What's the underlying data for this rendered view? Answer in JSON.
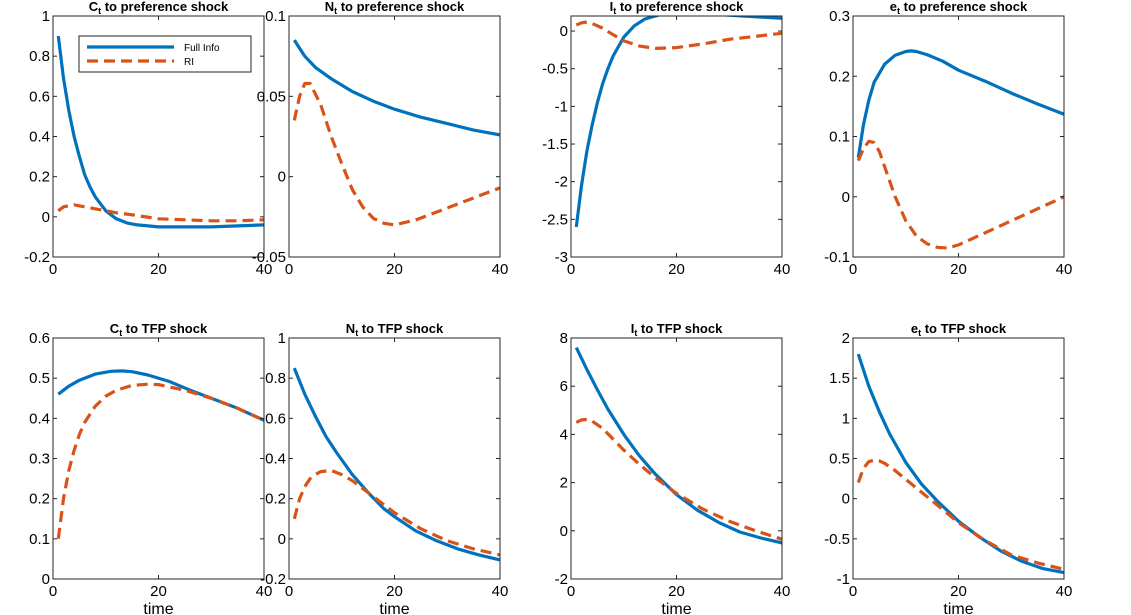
{
  "figure": {
    "legend": {
      "full_info": "Full Info",
      "ri": "RI"
    },
    "colors": {
      "full_info": "#0072BD",
      "ri": "#D95319"
    }
  },
  "chart_data": [
    {
      "type": "line",
      "var": "C",
      "sub": "t",
      "title_rest": " to preference shock",
      "xlabel": "",
      "xlim": [
        0,
        40
      ],
      "xticks": [
        "0",
        "20",
        "40"
      ],
      "ylim": [
        -0.2,
        1
      ],
      "yticks": [
        "-0.2",
        "0",
        "0.2",
        "0.4",
        "0.6",
        "0.8",
        "1"
      ],
      "legend": "top-left",
      "series": [
        {
          "name": "Full Info",
          "style": "solid",
          "x": [
            1,
            2,
            3,
            4,
            5,
            6,
            7,
            8,
            10,
            12,
            14,
            16,
            20,
            25,
            30,
            35,
            40
          ],
          "y": [
            0.9,
            0.69,
            0.53,
            0.4,
            0.3,
            0.21,
            0.15,
            0.1,
            0.03,
            -0.01,
            -0.03,
            -0.04,
            -0.05,
            -0.05,
            -0.05,
            -0.045,
            -0.04
          ]
        },
        {
          "name": "RI",
          "style": "dashed",
          "x": [
            1,
            2,
            4,
            6,
            8,
            10,
            12,
            15,
            20,
            25,
            30,
            35,
            40
          ],
          "y": [
            0.03,
            0.05,
            0.06,
            0.05,
            0.04,
            0.03,
            0.02,
            0.01,
            -0.01,
            -0.015,
            -0.02,
            -0.02,
            -0.015
          ]
        }
      ]
    },
    {
      "type": "line",
      "var": "N",
      "sub": "t",
      "title_rest": " to preference shock",
      "xlabel": "",
      "xlim": [
        0,
        40
      ],
      "xticks": [
        "0",
        "20",
        "40"
      ],
      "ylim": [
        -0.05,
        0.1
      ],
      "yticks": [
        "-0.05",
        "0",
        "0.05",
        "0.1"
      ],
      "series": [
        {
          "name": "Full Info",
          "style": "solid",
          "x": [
            1,
            3,
            5,
            8,
            12,
            16,
            20,
            25,
            30,
            35,
            40
          ],
          "y": [
            0.085,
            0.075,
            0.068,
            0.061,
            0.053,
            0.047,
            0.042,
            0.037,
            0.033,
            0.029,
            0.026
          ]
        },
        {
          "name": "RI",
          "style": "dashed",
          "x": [
            1,
            2,
            3,
            4,
            6,
            8,
            10,
            12,
            14,
            16,
            18,
            20,
            24,
            28,
            32,
            36,
            40
          ],
          "y": [
            0.035,
            0.05,
            0.058,
            0.058,
            0.045,
            0.025,
            0.008,
            -0.008,
            -0.019,
            -0.026,
            -0.029,
            -0.03,
            -0.027,
            -0.022,
            -0.017,
            -0.012,
            -0.007
          ]
        }
      ]
    },
    {
      "type": "line",
      "var": "I",
      "sub": "t",
      "title_rest": " to preference shock",
      "xlabel": "",
      "xlim": [
        0,
        40
      ],
      "xticks": [
        "0",
        "20",
        "40"
      ],
      "ylim": [
        -3,
        0.2
      ],
      "yticks": [
        "-3",
        "-2.5",
        "-2",
        "-1.5",
        "-1",
        "-0.5",
        "0"
      ],
      "series": [
        {
          "name": "Full Info",
          "style": "solid",
          "x": [
            1,
            2,
            3,
            4,
            5,
            6,
            7,
            8,
            10,
            12,
            14,
            17,
            20,
            25,
            30,
            35,
            40
          ],
          "y": [
            -2.6,
            -2.05,
            -1.6,
            -1.25,
            -0.95,
            -0.7,
            -0.5,
            -0.33,
            -0.08,
            0.07,
            0.16,
            0.22,
            0.24,
            0.23,
            0.21,
            0.19,
            0.17
          ]
        },
        {
          "name": "RI",
          "style": "dashed",
          "x": [
            1,
            2,
            3,
            4,
            6,
            8,
            10,
            13,
            16,
            20,
            25,
            30,
            35,
            40
          ],
          "y": [
            0.08,
            0.11,
            0.12,
            0.1,
            0.04,
            -0.05,
            -0.13,
            -0.2,
            -0.23,
            -0.22,
            -0.17,
            -0.11,
            -0.07,
            -0.03
          ]
        }
      ]
    },
    {
      "type": "line",
      "var": "e",
      "sub": "t",
      "title_rest": " to preference shock",
      "xlabel": "",
      "xlim": [
        0,
        40
      ],
      "xticks": [
        "0",
        "20",
        "40"
      ],
      "ylim": [
        -0.1,
        0.3
      ],
      "yticks": [
        "-0.1",
        "0",
        "0.1",
        "0.2",
        "0.3"
      ],
      "series": [
        {
          "name": "Full Info",
          "style": "solid",
          "x": [
            1,
            2,
            3,
            4,
            6,
            8,
            10,
            11,
            12,
            14,
            17,
            20,
            25,
            30,
            35,
            40
          ],
          "y": [
            0.065,
            0.12,
            0.16,
            0.19,
            0.22,
            0.235,
            0.241,
            0.242,
            0.241,
            0.236,
            0.225,
            0.21,
            0.192,
            0.172,
            0.154,
            0.137
          ]
        },
        {
          "name": "RI",
          "style": "dashed",
          "x": [
            1,
            2,
            3,
            4,
            5,
            6,
            8,
            10,
            12,
            14,
            16,
            18,
            20,
            25,
            30,
            35,
            40
          ],
          "y": [
            0.06,
            0.08,
            0.092,
            0.09,
            0.075,
            0.05,
            0.0,
            -0.04,
            -0.065,
            -0.078,
            -0.084,
            -0.085,
            -0.08,
            -0.06,
            -0.04,
            -0.02,
            0.0
          ]
        }
      ]
    },
    {
      "type": "line",
      "var": "C",
      "sub": "t",
      "title_rest": " to TFP shock",
      "xlabel": "time",
      "xlim": [
        0,
        40
      ],
      "xticks": [
        "0",
        "20",
        "40"
      ],
      "ylim": [
        0,
        0.6
      ],
      "yticks": [
        "0",
        "0.1",
        "0.2",
        "0.3",
        "0.4",
        "0.5",
        "0.6"
      ],
      "series": [
        {
          "name": "Full Info",
          "style": "solid",
          "x": [
            1,
            3,
            5,
            8,
            11,
            13,
            15,
            18,
            22,
            26,
            30,
            35,
            40
          ],
          "y": [
            0.46,
            0.48,
            0.495,
            0.51,
            0.517,
            0.518,
            0.516,
            0.508,
            0.492,
            0.47,
            0.45,
            0.425,
            0.395
          ]
        },
        {
          "name": "RI",
          "style": "dashed",
          "x": [
            1,
            2,
            3,
            4,
            5,
            6,
            8,
            10,
            12,
            15,
            18,
            20,
            25,
            30,
            35,
            40
          ],
          "y": [
            0.1,
            0.2,
            0.27,
            0.32,
            0.36,
            0.39,
            0.43,
            0.455,
            0.47,
            0.482,
            0.485,
            0.484,
            0.47,
            0.45,
            0.425,
            0.395
          ]
        }
      ]
    },
    {
      "type": "line",
      "var": "N",
      "sub": "t",
      "title_rest": " to TFP shock",
      "xlabel": "time",
      "xlim": [
        0,
        40
      ],
      "xticks": [
        "0",
        "20",
        "40"
      ],
      "ylim": [
        -0.2,
        1
      ],
      "yticks": [
        "-0.2",
        "0",
        "0.2",
        "0.4",
        "0.6",
        "0.8",
        "1"
      ],
      "series": [
        {
          "name": "Full Info",
          "style": "solid",
          "x": [
            1,
            3,
            5,
            7,
            9,
            12,
            15,
            18,
            20,
            24,
            28,
            32,
            36,
            40
          ],
          "y": [
            0.85,
            0.72,
            0.61,
            0.51,
            0.43,
            0.32,
            0.23,
            0.15,
            0.11,
            0.04,
            -0.01,
            -0.05,
            -0.08,
            -0.105
          ]
        },
        {
          "name": "RI",
          "style": "dashed",
          "x": [
            1,
            2,
            3,
            4,
            5,
            6,
            8,
            10,
            12,
            15,
            18,
            20,
            25,
            30,
            35,
            40
          ],
          "y": [
            0.1,
            0.2,
            0.26,
            0.3,
            0.32,
            0.335,
            0.34,
            0.32,
            0.29,
            0.23,
            0.17,
            0.13,
            0.05,
            -0.01,
            -0.05,
            -0.08
          ]
        }
      ]
    },
    {
      "type": "line",
      "var": "I",
      "sub": "t",
      "title_rest": " to TFP shock",
      "xlabel": "time",
      "xlim": [
        0,
        40
      ],
      "xticks": [
        "0",
        "20",
        "40"
      ],
      "ylim": [
        -2,
        8
      ],
      "yticks": [
        "-2",
        "0",
        "2",
        "4",
        "6",
        "8"
      ],
      "series": [
        {
          "name": "Full Info",
          "style": "solid",
          "x": [
            1,
            3,
            5,
            7,
            10,
            13,
            16,
            20,
            24,
            28,
            32,
            36,
            40
          ],
          "y": [
            7.6,
            6.7,
            5.85,
            5.05,
            4.0,
            3.1,
            2.35,
            1.5,
            0.85,
            0.35,
            -0.05,
            -0.3,
            -0.5
          ]
        },
        {
          "name": "RI",
          "style": "dashed",
          "x": [
            1,
            2,
            3,
            4,
            6,
            8,
            10,
            13,
            16,
            20,
            25,
            30,
            35,
            40
          ],
          "y": [
            4.5,
            4.6,
            4.62,
            4.55,
            4.25,
            3.8,
            3.35,
            2.75,
            2.2,
            1.55,
            0.9,
            0.4,
            0.0,
            -0.35
          ]
        }
      ]
    },
    {
      "type": "line",
      "var": "e",
      "sub": "t",
      "title_rest": " to TFP shock",
      "xlabel": "time",
      "xlim": [
        0,
        40
      ],
      "xticks": [
        "0",
        "20",
        "40"
      ],
      "ylim": [
        -1,
        2
      ],
      "yticks": [
        "-1",
        "-0.5",
        "0",
        "0.5",
        "1",
        "1.5",
        "2"
      ],
      "series": [
        {
          "name": "Full Info",
          "style": "solid",
          "x": [
            1,
            3,
            5,
            7,
            10,
            13,
            16,
            20,
            24,
            28,
            32,
            36,
            40
          ],
          "y": [
            1.8,
            1.4,
            1.08,
            0.8,
            0.45,
            0.18,
            -0.03,
            -0.28,
            -0.48,
            -0.65,
            -0.78,
            -0.87,
            -0.92
          ]
        },
        {
          "name": "RI",
          "style": "dashed",
          "x": [
            1,
            2,
            3,
            4,
            5,
            6,
            8,
            10,
            13,
            16,
            20,
            25,
            30,
            35,
            40
          ],
          "y": [
            0.2,
            0.38,
            0.46,
            0.48,
            0.47,
            0.44,
            0.35,
            0.24,
            0.08,
            -0.08,
            -0.3,
            -0.52,
            -0.7,
            -0.8,
            -0.88
          ]
        }
      ]
    }
  ]
}
